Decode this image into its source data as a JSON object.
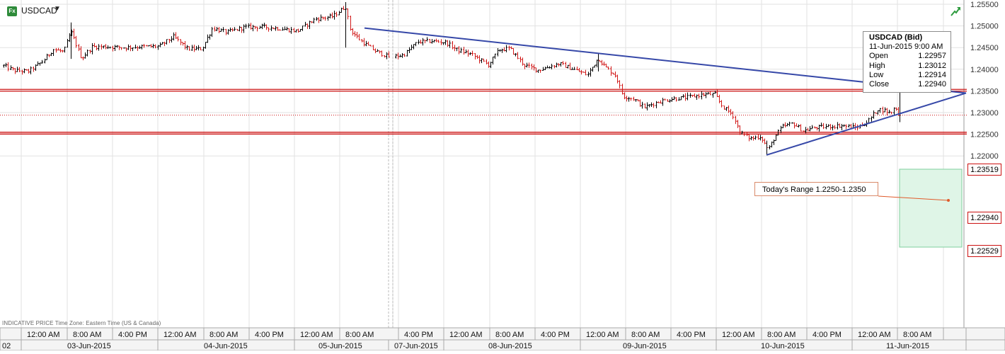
{
  "header": {
    "symbol_badge": "Fx",
    "symbol": "USDCAD",
    "caret": "▼",
    "trend_icon": "trend-arrow-icon"
  },
  "footer": {
    "note": "INDICATIVE PRICE   Time Zone: Eastern Time (US & Canada)"
  },
  "info_box": {
    "title": "USDCAD (Bid)",
    "datetime": "11-Jun-2015 9:00 AM",
    "rows": [
      {
        "label": "Open",
        "value": "1.22957"
      },
      {
        "label": "High",
        "value": "1.23012"
      },
      {
        "label": "Low",
        "value": "1.22914"
      },
      {
        "label": "Close",
        "value": "1.22940"
      }
    ]
  },
  "annotation": {
    "range_text": "Today's Range 1.2250-1.2350"
  },
  "price_tags": {
    "upper": "1.23519",
    "current": "1.22940",
    "lower": "1.22529"
  },
  "colors": {
    "up_candle": "#000000",
    "down_candle": "#d11a1a",
    "trendline": "#3648a8",
    "support_resistance": "#cc1111",
    "range_fill": "#dff5e7",
    "range_border": "#7fcf9c",
    "grid": "#e2e2e2"
  },
  "chart_data": {
    "type": "ohlc",
    "instrument": "USDCAD",
    "ylim": [
      1.2155,
      1.2555
    ],
    "y_ticks": [
      "1.25500",
      "1.25000",
      "1.24500",
      "1.24000",
      "1.23500",
      "1.23000",
      "1.22500",
      "1.22000"
    ],
    "y_tick_values": [
      1.255,
      1.25,
      1.245,
      1.24,
      1.235,
      1.23,
      1.225,
      1.22
    ],
    "x_time_labels": [
      "12:00 AM",
      "8:00 AM",
      "4:00 PM",
      "12:00 AM",
      "8:00 AM",
      "4:00 PM",
      "12:00 AM",
      "8:00 AM",
      "4:00 PM",
      "12:00 AM",
      "8:00 AM",
      "4:00 PM",
      "12:00 AM",
      "8:00 AM",
      "4:00 PM",
      "12:00 AM",
      "8:00 AM",
      "4:00 PM",
      "12:00 AM",
      "8:00 AM"
    ],
    "x_date_labels": [
      "02",
      "03-Jun-2015",
      "04-Jun-2015",
      "05-Jun-2015",
      "07-Jun-2015",
      "08-Jun-2015",
      "09-Jun-2015",
      "10-Jun-2015",
      "11-Jun-2015"
    ],
    "horizontal_levels": [
      {
        "label": "1.23519",
        "value": 1.23519,
        "style": "resistance"
      },
      {
        "label": "1.22940",
        "value": 1.2294,
        "style": "current"
      },
      {
        "label": "1.22529",
        "value": 1.22529,
        "style": "support"
      }
    ],
    "trendlines": [
      {
        "from": [
          515,
          1.2495
        ],
        "to": [
          1365,
          1.2345
        ]
      },
      {
        "from": [
          1083,
          1.2202
        ],
        "to": [
          1365,
          1.2345
        ]
      }
    ],
    "anchors": [
      [
        5,
        1.2408
      ],
      [
        20,
        1.2397
      ],
      [
        40,
        1.2395
      ],
      [
        60,
        1.2418
      ],
      [
        75,
        1.2446
      ],
      [
        90,
        1.244
      ],
      [
        100,
        1.2488
      ],
      [
        115,
        1.2425
      ],
      [
        130,
        1.2452
      ],
      [
        150,
        1.2452
      ],
      [
        175,
        1.245
      ],
      [
        200,
        1.2452
      ],
      [
        225,
        1.2453
      ],
      [
        245,
        1.2475
      ],
      [
        265,
        1.2447
      ],
      [
        285,
        1.2447
      ],
      [
        300,
        1.2495
      ],
      [
        320,
        1.2485
      ],
      [
        345,
        1.2497
      ],
      [
        370,
        1.2498
      ],
      [
        395,
        1.2494
      ],
      [
        420,
        1.2488
      ],
      [
        445,
        1.2516
      ],
      [
        470,
        1.2522
      ],
      [
        488,
        1.2545
      ],
      [
        495,
        1.249
      ],
      [
        510,
        1.2465
      ],
      [
        530,
        1.2442
      ],
      [
        550,
        1.2428
      ],
      [
        570,
        1.2433
      ],
      [
        590,
        1.2463
      ],
      [
        610,
        1.2465
      ],
      [
        630,
        1.2462
      ],
      [
        645,
        1.2445
      ],
      [
        665,
        1.2435
      ],
      [
        690,
        1.241
      ],
      [
        705,
        1.2445
      ],
      [
        720,
        1.2448
      ],
      [
        740,
        1.241
      ],
      [
        760,
        1.2398
      ],
      [
        790,
        1.2413
      ],
      [
        810,
        1.24
      ],
      [
        830,
        1.2387
      ],
      [
        845,
        1.2425
      ],
      [
        855,
        1.2405
      ],
      [
        870,
        1.2385
      ],
      [
        880,
        1.2338
      ],
      [
        895,
        1.2332
      ],
      [
        910,
        1.2312
      ],
      [
        930,
        1.2325
      ],
      [
        950,
        1.2332
      ],
      [
        970,
        1.2335
      ],
      [
        995,
        1.2342
      ],
      [
        1010,
        1.2342
      ],
      [
        1020,
        1.2315
      ],
      [
        1035,
        1.2295
      ],
      [
        1045,
        1.2255
      ],
      [
        1060,
        1.224
      ],
      [
        1075,
        1.2245
      ],
      [
        1085,
        1.2214
      ],
      [
        1095,
        1.2245
      ],
      [
        1105,
        1.2267
      ],
      [
        1120,
        1.2275
      ],
      [
        1135,
        1.2258
      ],
      [
        1150,
        1.2265
      ],
      [
        1170,
        1.2268
      ],
      [
        1190,
        1.227
      ],
      [
        1210,
        1.2265
      ],
      [
        1225,
        1.2278
      ],
      [
        1240,
        1.2308
      ],
      [
        1250,
        1.2305
      ],
      [
        1258,
        1.2298
      ],
      [
        1265,
        1.2315
      ],
      [
        1270,
        1.2288
      ]
    ]
  }
}
